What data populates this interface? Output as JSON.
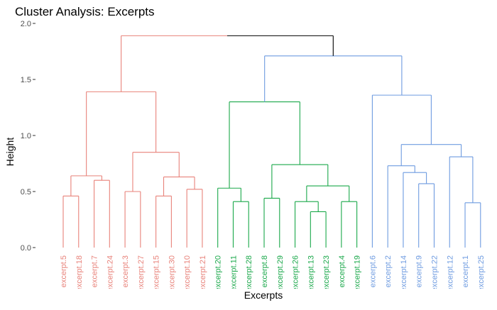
{
  "chart_data": {
    "type": "dendrogram",
    "title": "Cluster Analysis: Excerpts",
    "xlabel": "Excerpts",
    "ylabel": "Height",
    "ylim": [
      0,
      2.0
    ],
    "yticks": [
      "0.0",
      "0.5",
      "1.0",
      "1.5",
      "2.0"
    ],
    "grid": false,
    "legend": "none",
    "colors": {
      "cluster_1": "#e8827a",
      "cluster_2": "#1aa84a",
      "cluster_3": "#6e9be0",
      "root": "#000000"
    },
    "leaves": [
      {
        "label": "excerpt.5",
        "cluster": 1
      },
      {
        "label": "excerpt.18",
        "cluster": 1
      },
      {
        "label": "excerpt.7",
        "cluster": 1
      },
      {
        "label": "excerpt.24",
        "cluster": 1
      },
      {
        "label": "excerpt.3",
        "cluster": 1
      },
      {
        "label": "excerpt.27",
        "cluster": 1
      },
      {
        "label": "excerpt.15",
        "cluster": 1
      },
      {
        "label": "excerpt.30",
        "cluster": 1
      },
      {
        "label": "excerpt.10",
        "cluster": 1
      },
      {
        "label": "excerpt.21",
        "cluster": 1
      },
      {
        "label": "excerpt.20",
        "cluster": 2
      },
      {
        "label": "excerpt.11",
        "cluster": 2
      },
      {
        "label": "excerpt.28",
        "cluster": 2
      },
      {
        "label": "excerpt.8",
        "cluster": 2
      },
      {
        "label": "excerpt.29",
        "cluster": 2
      },
      {
        "label": "excerpt.26",
        "cluster": 2
      },
      {
        "label": "excerpt.13",
        "cluster": 2
      },
      {
        "label": "excerpt.23",
        "cluster": 2
      },
      {
        "label": "excerpt.4",
        "cluster": 2
      },
      {
        "label": "excerpt.19",
        "cluster": 2
      },
      {
        "label": "excerpt.6",
        "cluster": 3
      },
      {
        "label": "excerpt.2",
        "cluster": 3
      },
      {
        "label": "excerpt.14",
        "cluster": 3
      },
      {
        "label": "excerpt.9",
        "cluster": 3
      },
      {
        "label": "excerpt.22",
        "cluster": 3
      },
      {
        "label": "excerpt.12",
        "cluster": 3
      },
      {
        "label": "excerpt.1",
        "cluster": 3
      },
      {
        "label": "excerpt.25",
        "cluster": 3
      }
    ],
    "merges": [
      {
        "left": "L0",
        "right": "L1",
        "height": 0.46,
        "cluster": 1
      },
      {
        "left": "L2",
        "right": "L3",
        "height": 0.6,
        "cluster": 1
      },
      {
        "left": "M0",
        "right": "M1",
        "height": 0.64,
        "cluster": 1
      },
      {
        "left": "L4",
        "right": "L5",
        "height": 0.5,
        "cluster": 1
      },
      {
        "left": "L6",
        "right": "L7",
        "height": 0.46,
        "cluster": 1
      },
      {
        "left": "L8",
        "right": "L9",
        "height": 0.52,
        "cluster": 1
      },
      {
        "left": "M4",
        "right": "M5",
        "height": 0.63,
        "cluster": 1
      },
      {
        "left": "M3",
        "right": "M6",
        "height": 0.85,
        "cluster": 1
      },
      {
        "left": "M2",
        "right": "M7",
        "height": 1.39,
        "cluster": 1
      },
      {
        "left": "L11",
        "right": "L12",
        "height": 0.41,
        "cluster": 2
      },
      {
        "left": "L10",
        "right": "M9",
        "height": 0.53,
        "cluster": 2
      },
      {
        "left": "L13",
        "right": "L14",
        "height": 0.44,
        "cluster": 2
      },
      {
        "left": "L16",
        "right": "L17",
        "height": 0.32,
        "cluster": 2
      },
      {
        "left": "L15",
        "right": "M12",
        "height": 0.41,
        "cluster": 2
      },
      {
        "left": "L18",
        "right": "L19",
        "height": 0.41,
        "cluster": 2
      },
      {
        "left": "M13",
        "right": "M14",
        "height": 0.55,
        "cluster": 2
      },
      {
        "left": "M11",
        "right": "M15",
        "height": 0.74,
        "cluster": 2
      },
      {
        "left": "M10",
        "right": "M16",
        "height": 1.3,
        "cluster": 2
      },
      {
        "left": "L23",
        "right": "L24",
        "height": 0.57,
        "cluster": 3
      },
      {
        "left": "L22",
        "right": "M18",
        "height": 0.67,
        "cluster": 3
      },
      {
        "left": "L21",
        "right": "M19",
        "height": 0.73,
        "cluster": 3
      },
      {
        "left": "L26",
        "right": "L27",
        "height": 0.4,
        "cluster": 3
      },
      {
        "left": "L25",
        "right": "M21",
        "height": 0.81,
        "cluster": 3
      },
      {
        "left": "M20",
        "right": "M22",
        "height": 0.92,
        "cluster": 3
      },
      {
        "left": "L20",
        "right": "M23",
        "height": 1.36,
        "cluster": 3
      },
      {
        "left": "M17",
        "right": "M24",
        "height": 1.71,
        "cluster": 3
      },
      {
        "left": "M8",
        "right": "M25",
        "height": 1.89,
        "cluster": "root"
      }
    ]
  }
}
